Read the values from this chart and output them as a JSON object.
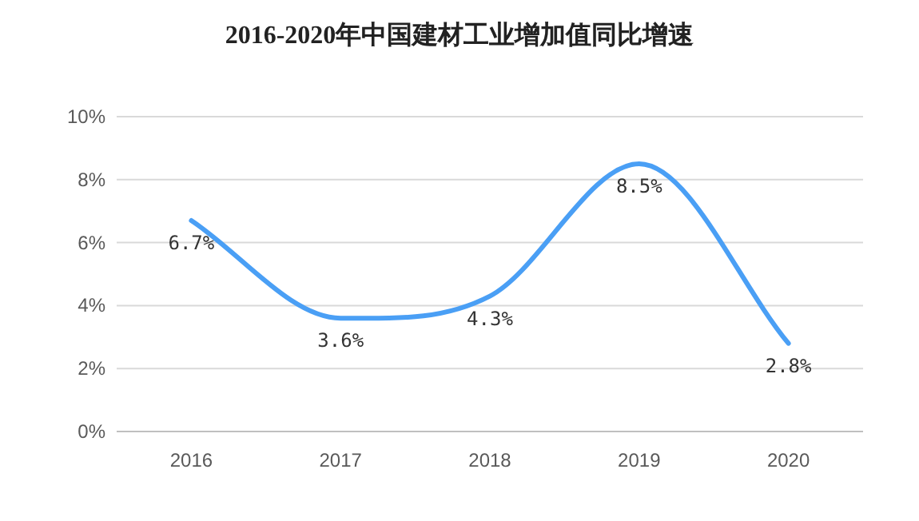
{
  "chart_data": {
    "type": "line",
    "title": "2016-2020年中国建材工业增加值同比增速",
    "categories": [
      "2016",
      "2017",
      "2018",
      "2019",
      "2020"
    ],
    "series": [
      {
        "color": "#4a9ff5",
        "values": [
          6.7,
          3.6,
          4.3,
          8.5,
          2.8
        ],
        "value_labels": [
          "6.7%",
          "3.6%",
          "4.3%",
          "8.5%",
          "2.8%"
        ]
      }
    ],
    "ylim": [
      0,
      10
    ],
    "yticks": [
      {
        "value": 0,
        "label": "0%"
      },
      {
        "value": 2,
        "label": "2%"
      },
      {
        "value": 4,
        "label": "4%"
      },
      {
        "value": 6,
        "label": "6%"
      },
      {
        "value": 8,
        "label": "8%"
      },
      {
        "value": 10,
        "label": "10%"
      }
    ],
    "grid": "y",
    "marker": "none",
    "line_style": "solid"
  }
}
